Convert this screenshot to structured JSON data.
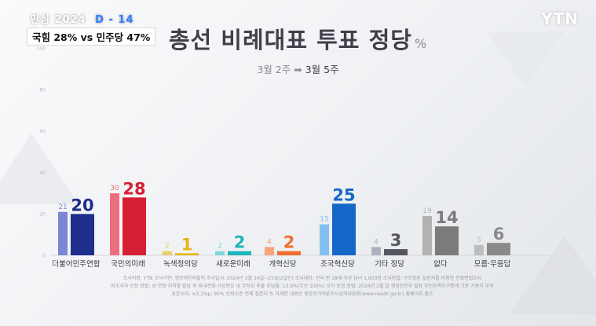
{
  "badge": {
    "top_label": "민심 2024",
    "dday": "D - 14",
    "main": "국힘 28% vs 민주당 47%"
  },
  "broadcaster": "YTN",
  "title": "총선 비례대표 투표 정당",
  "title_unit": "%",
  "subtitle": {
    "prev": "3월 2주",
    "arrow": "➡",
    "now": "3월 5주"
  },
  "colors": {
    "background": "#eef0f3",
    "prev_dark_bar": "#e4e6ea"
  },
  "chart_data": {
    "type": "bar",
    "categories": [
      "더불어민주연합",
      "국민의미래",
      "녹색정의당",
      "새로운미래",
      "개혁신당",
      "조국혁신당",
      "기타 정당",
      "없다",
      "모름·무응답"
    ],
    "series": [
      {
        "name": "3월 2주",
        "values": [
          21,
          30,
          2,
          2,
          4,
          15,
          4,
          19,
          5
        ]
      },
      {
        "name": "3월 5주",
        "values": [
          20,
          28,
          1,
          2,
          2,
          25,
          3,
          14,
          6
        ]
      }
    ],
    "colors_prev": [
      "#7b86d6",
      "#ea6e7b",
      "#e8cf6a",
      "#7cd7d8",
      "#f6a37e",
      "#82bff2",
      "#aeb0bf",
      "#b2b2b2",
      "#bdbdbd"
    ],
    "colors_now": [
      "#1e2e8c",
      "#d71f33",
      "#e5b51a",
      "#1bb5b8",
      "#f16f2c",
      "#1467c8",
      "#55565f",
      "#7c7c7c",
      "#8a8a8a"
    ],
    "ylim": [
      0,
      100
    ],
    "yticks": [
      0,
      20,
      40,
      60,
      80,
      100
    ],
    "grid": false
  },
  "notes": [
    "조사의뢰: YTN   조사기관: 엠브레인퍼블릭   조사일시: 2024년 3월 24일~25일(2일간)   조사대상: 전국 만 18세 이상 남녀 1,003명   조사방법: 구조화된 설문지를 이용한 전화면접조사",
    "피조사자 선정 방법: 성·연령·지역별 할당 후 휴대전화 가상번호 내 무작위 추출   응답률: 13.9%(무선 100%)   오차 보정 방법: 2024년 2월 말 행정안전부 발표 주민등록인구통계 기준 가중치 부여",
    "표본오차: ±3.1%p, 95% 신뢰수준   전체 질문지 등 자세한 내용은 중앙선거여론조사심의위원회(www.nesdc.go.kr) 홈페이지 참조"
  ]
}
